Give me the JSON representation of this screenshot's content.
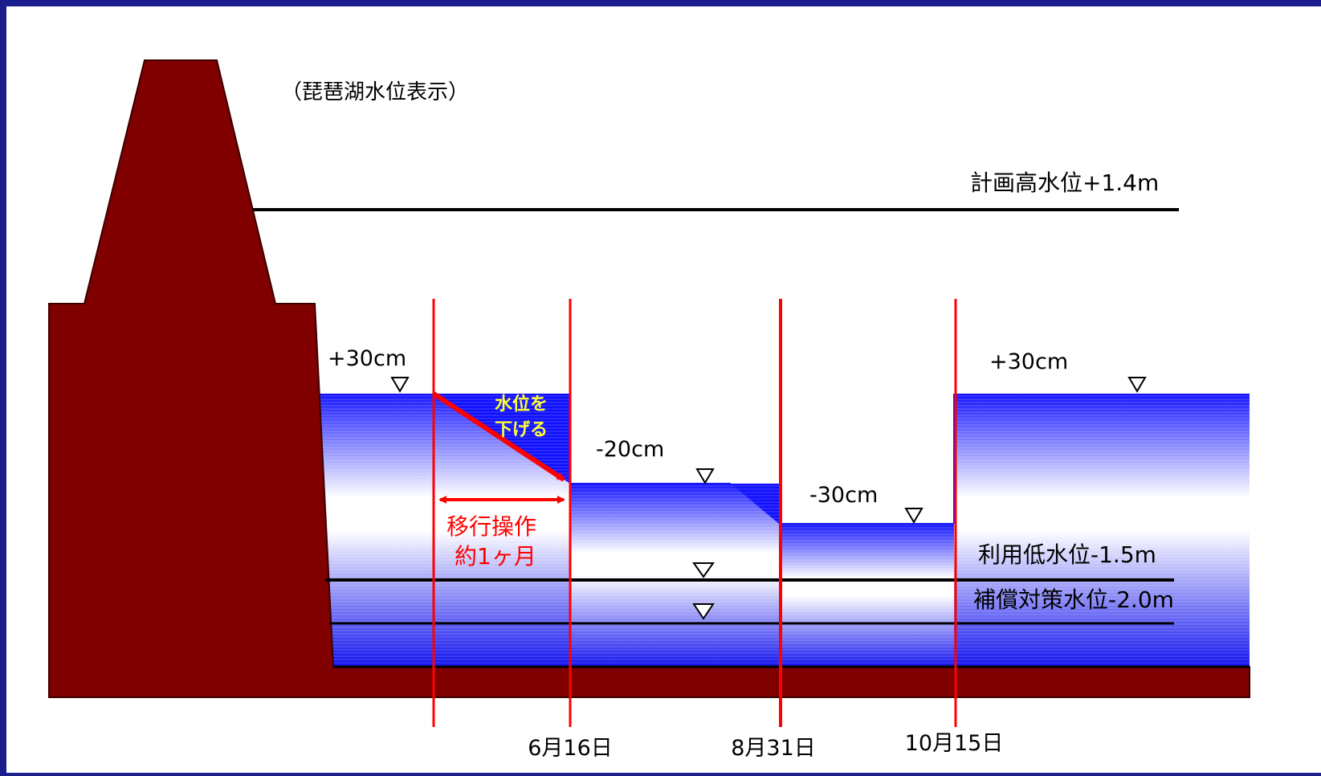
{
  "caption": "（琵琶湖水位表示）",
  "levels": {
    "plan_high": "計画高水位+1.4m",
    "use_low": "利用低水位-1.5m",
    "compensation": "補償対策水位-2.0m"
  },
  "stage_labels": {
    "plus30_left": "+30cm",
    "minus20": "-20cm",
    "minus30": "-30cm",
    "plus30_right": "+30cm"
  },
  "annotations": {
    "lower_line1": "水位を",
    "lower_line2": "下げる",
    "transition_line1": "移行操作",
    "transition_line2": "約1ヶ月"
  },
  "dates": {
    "d1": "6月16日",
    "d2": "8月31日",
    "d3": "10月15日"
  },
  "colors": {
    "frame": "#1b1f8e",
    "dam": "#800000",
    "water": "#1a1aff",
    "divider": "#ff0000",
    "highlight_text": "#ffff33"
  }
}
